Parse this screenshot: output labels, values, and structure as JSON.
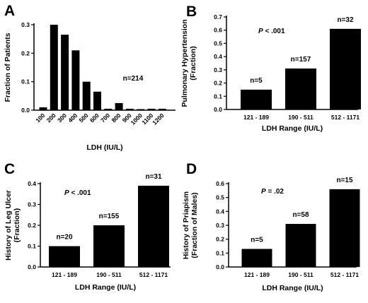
{
  "figure": {
    "panels": [
      "A",
      "B",
      "C",
      "D"
    ]
  },
  "chart_data": [
    {
      "id": "A",
      "type": "bar",
      "letter": "A",
      "categories": [
        "100",
        "200",
        "300",
        "400",
        "500",
        "600",
        "700",
        "800",
        "900",
        "1000",
        "1100",
        "1200"
      ],
      "values": [
        0.01,
        0.3,
        0.265,
        0.21,
        0.1,
        0.065,
        0.005,
        0.025,
        0.005,
        0.003,
        0.005,
        0.005
      ],
      "ylim": [
        0,
        0.3
      ],
      "yticks": [
        "0.0",
        "0.1",
        "0.2",
        "0.3"
      ],
      "ytick_values": [
        0,
        0.1,
        0.2,
        0.3
      ],
      "xlabel": "LDH (IU/L)",
      "ylabel": [
        "Fraction of Patients"
      ],
      "annotations": [
        {
          "text": "n=214"
        }
      ],
      "rotate_xticks": true
    },
    {
      "id": "B",
      "type": "bar",
      "letter": "B",
      "categories": [
        "121 - 189",
        "190 - 511",
        "512 - 1171"
      ],
      "values": [
        0.15,
        0.31,
        0.61
      ],
      "bar_labels": [
        "n=5",
        "n=157",
        "n=32"
      ],
      "ylim": [
        0,
        0.7
      ],
      "yticks": [
        "0.0",
        "0.1",
        "0.2",
        "0.3",
        "0.4",
        "0.5",
        "0.6",
        "0.7"
      ],
      "ytick_values": [
        0,
        0.1,
        0.2,
        0.3,
        0.4,
        0.5,
        0.6,
        0.7
      ],
      "xlabel": "LDH Range (IU/L)",
      "ylabel": [
        "Pulmonary Hypertension",
        "(Fraction)"
      ],
      "pvalue": {
        "symbol": "P",
        "rest": " < .001"
      }
    },
    {
      "id": "C",
      "type": "bar",
      "letter": "C",
      "categories": [
        "121 - 189",
        "190 - 511",
        "512 - 1171"
      ],
      "values": [
        0.1,
        0.2,
        0.39
      ],
      "bar_labels": [
        "n=20",
        "n=155",
        "n=31"
      ],
      "ylim": [
        0,
        0.4
      ],
      "yticks": [
        "0.0",
        "0.1",
        "0.2",
        "0.3",
        "0.4"
      ],
      "ytick_values": [
        0,
        0.1,
        0.2,
        0.3,
        0.4
      ],
      "xlabel": "LDH Range (IU/L)",
      "ylabel": [
        "History of Leg Ulcer",
        "(Fraction)"
      ],
      "pvalue": {
        "symbol": "P",
        "rest": " < .001"
      }
    },
    {
      "id": "D",
      "type": "bar",
      "letter": "D",
      "categories": [
        "121 - 189",
        "190 - 511",
        "512 - 1171"
      ],
      "values": [
        0.13,
        0.31,
        0.56
      ],
      "bar_labels": [
        "n=5",
        "n=58",
        "n=15"
      ],
      "ylim": [
        0,
        0.6
      ],
      "yticks": [
        "0.0",
        "0.1",
        "0.2",
        "0.3",
        "0.4",
        "0.5",
        "0.6"
      ],
      "ytick_values": [
        0,
        0.1,
        0.2,
        0.3,
        0.4,
        0.5,
        0.6
      ],
      "xlabel": "LDH Range (IU/L)",
      "ylabel": [
        "History of Priapism",
        "(Fraction of Males)"
      ],
      "pvalue": {
        "symbol": "P",
        "rest": " = .02"
      }
    }
  ]
}
